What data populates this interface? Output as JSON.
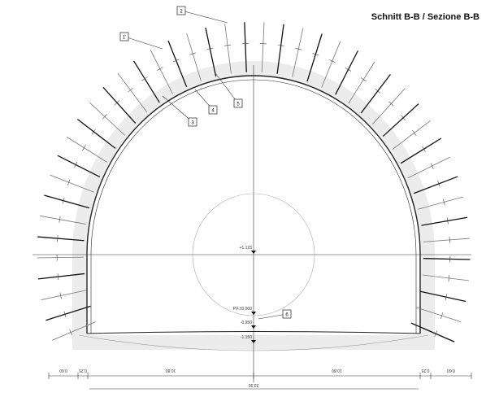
{
  "title": "Schnitt B-B / Sezione B-B",
  "callouts": [
    {
      "label": "2"
    },
    {
      "label": "1'"
    },
    {
      "label": "3"
    },
    {
      "label": "4"
    },
    {
      "label": "5"
    },
    {
      "label": "6"
    }
  ],
  "levels": [
    "+1.123",
    "P.F.±0.000",
    "-0.950",
    "-1.150"
  ],
  "dimensions": [
    "0.60",
    "0.25",
    "10.80",
    "10.80",
    "0.25",
    "0.60"
  ],
  "overall": "23.90"
}
